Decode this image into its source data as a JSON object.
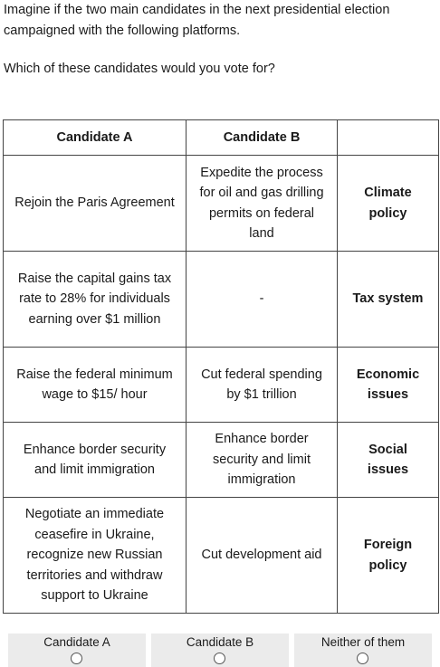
{
  "survey": {
    "intro": "Imagine if the two main candidates in the next presidential election campaigned with the following platforms.",
    "question": "Which of these candidates would you vote for?"
  },
  "table": {
    "headers": [
      "Candidate A",
      "Candidate B",
      ""
    ],
    "rows": [
      {
        "a": "Rejoin the Paris Agreement",
        "b": "Expedite the process for oil and gas drilling permits on federal land",
        "attribute": "Climate policy"
      },
      {
        "a": "Raise the capital gains tax rate to 28% for individuals earning over $1 million",
        "b": "-",
        "attribute": "Tax system"
      },
      {
        "a": "Raise the federal minimum wage to $15/ hour",
        "b": "Cut federal spending by $1 trillion",
        "attribute": "Economic issues"
      },
      {
        "a": "Enhance border security and limit immigration",
        "b": "Enhance border security and limit immigration",
        "attribute": "Social issues"
      },
      {
        "a": "Negotiate an immediate ceasefire in Ukraine, recognize new Russian territories and withdraw support to Ukraine",
        "b": "Cut development aid",
        "attribute": "Foreign policy"
      }
    ]
  },
  "choices": [
    {
      "label": "Candidate A",
      "selected": false
    },
    {
      "label": "Candidate B",
      "selected": false
    },
    {
      "label": "Neither of them",
      "selected": false
    }
  ]
}
